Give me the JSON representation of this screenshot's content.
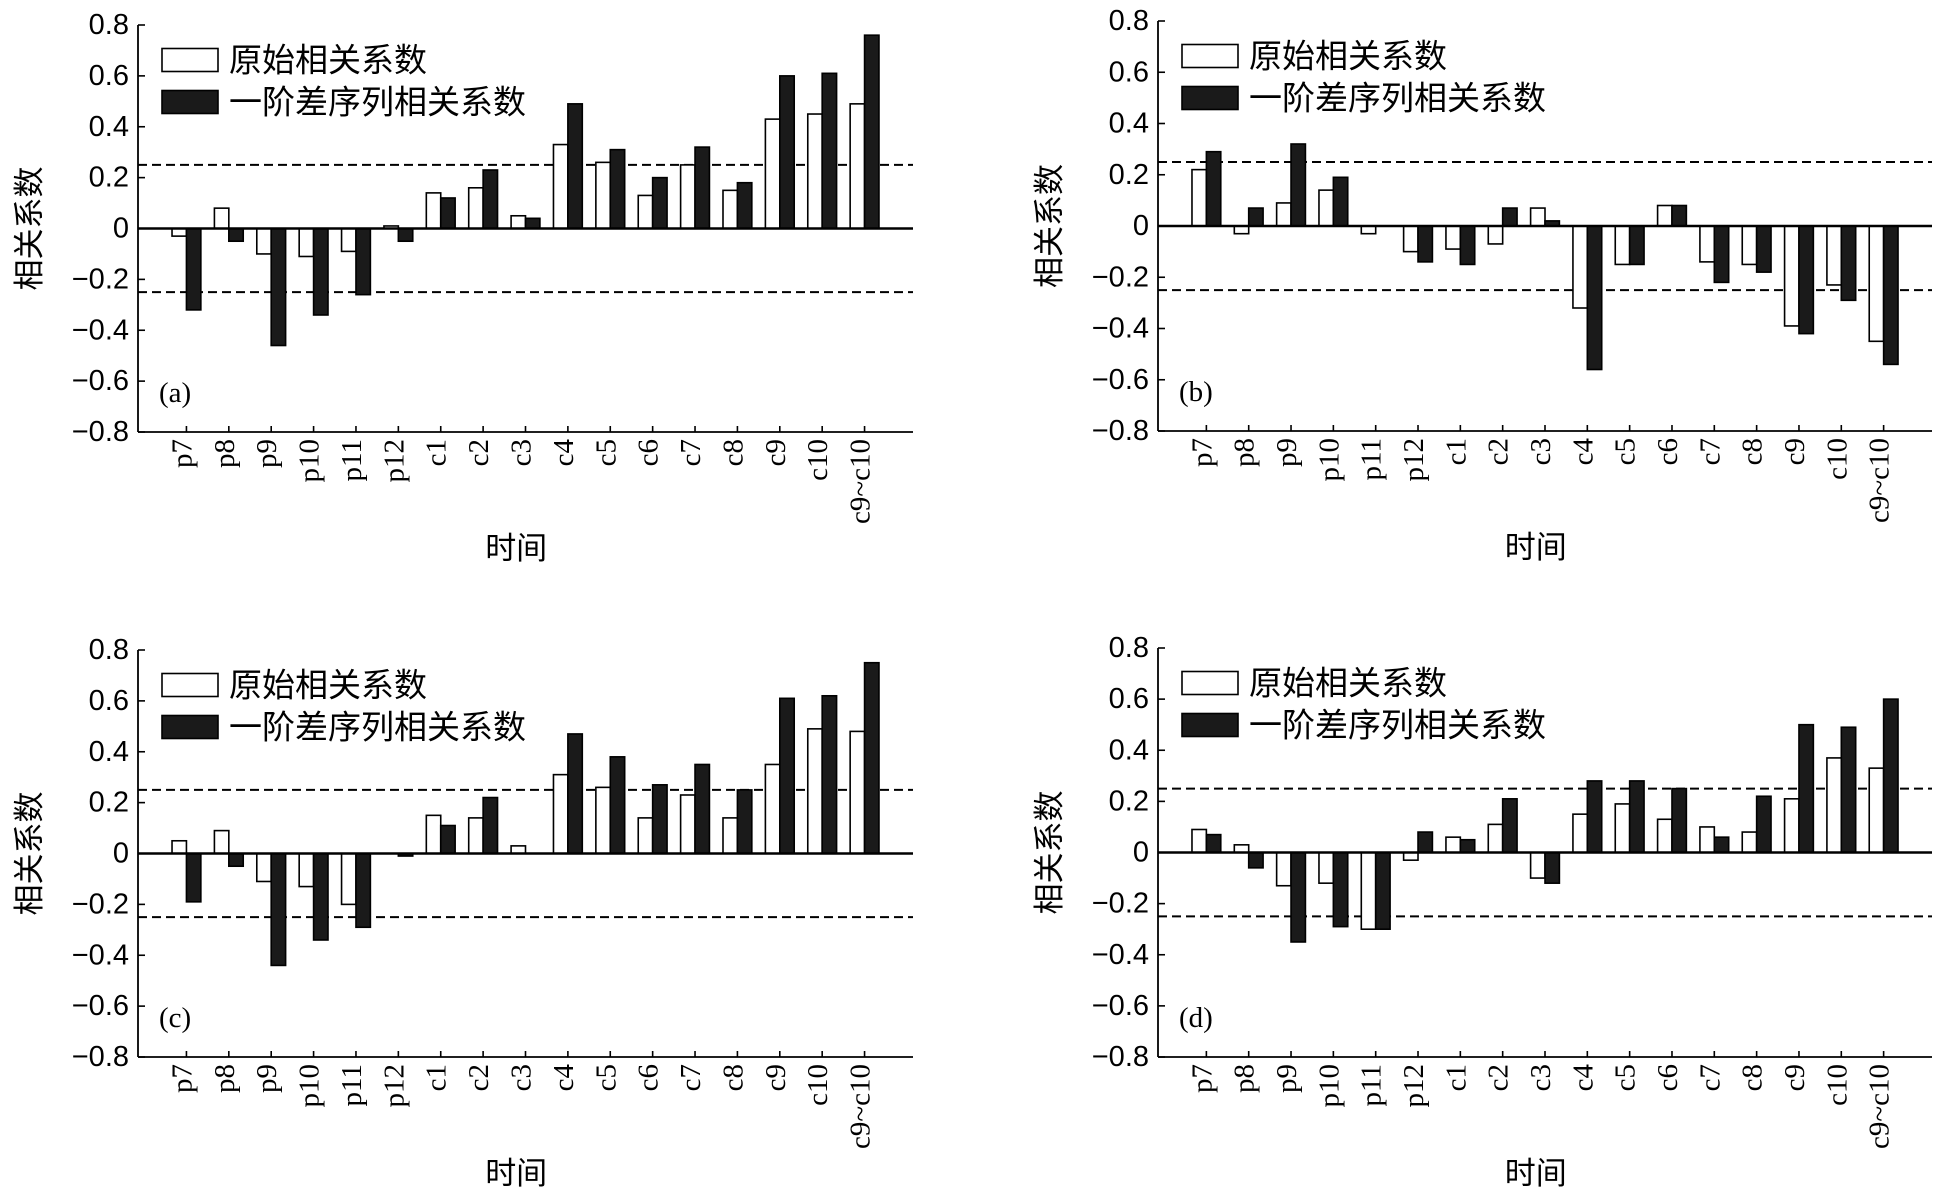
{
  "chart_data": [
    {
      "panel_label": "(a)",
      "type": "bar",
      "categories": [
        "p7",
        "p8",
        "p9",
        "p10",
        "p11",
        "p12",
        "c1",
        "c2",
        "c3",
        "c4",
        "c5",
        "c6",
        "c7",
        "c8",
        "c9",
        "c10",
        "c9~c10"
      ],
      "series": [
        {
          "name": "原始相关系数",
          "color": "#ffffff",
          "values": [
            -0.03,
            0.08,
            -0.1,
            -0.11,
            -0.09,
            0.01,
            0.14,
            0.16,
            0.05,
            0.33,
            0.26,
            0.13,
            0.25,
            0.15,
            0.43,
            0.45,
            0.49
          ]
        },
        {
          "name": "一阶差序列相关系数",
          "color": "#1a1a1a",
          "values": [
            -0.32,
            -0.05,
            -0.46,
            -0.34,
            -0.26,
            -0.05,
            0.12,
            0.23,
            0.04,
            0.49,
            0.31,
            0.2,
            0.32,
            0.18,
            0.6,
            0.61,
            0.76
          ]
        }
      ],
      "edge_color": "#000000",
      "xlabel": "时间",
      "ylabel": "相关系数",
      "ylim": [
        -0.8,
        0.8
      ],
      "yticks": [
        0.8,
        0.6,
        0.4,
        0.2,
        0,
        -0.2,
        -0.4,
        -0.6,
        -0.8
      ],
      "ytick_labels": [
        "0.8",
        "0.6",
        "0.4",
        "0.2",
        "0",
        "−0.2",
        "−0.4",
        "−0.6",
        "−0.8"
      ],
      "reference_lines": [
        0.25,
        -0.25
      ],
      "grid": false,
      "legend": "top-left"
    },
    {
      "panel_label": "(b)",
      "type": "bar",
      "categories": [
        "p7",
        "p8",
        "p9",
        "p10",
        "p11",
        "p12",
        "c1",
        "c2",
        "c3",
        "c4",
        "c5",
        "c6",
        "c7",
        "c8",
        "c9",
        "c10",
        "c9~c10"
      ],
      "series": [
        {
          "name": "原始相关系数",
          "color": "#ffffff",
          "values": [
            0.22,
            -0.03,
            0.09,
            0.14,
            -0.03,
            -0.1,
            -0.09,
            -0.07,
            0.07,
            -0.32,
            -0.15,
            0.08,
            -0.14,
            -0.15,
            -0.39,
            -0.23,
            -0.45
          ]
        },
        {
          "name": "一阶差序列相关系数",
          "color": "#1a1a1a",
          "values": [
            0.29,
            0.07,
            0.32,
            0.19,
            0,
            -0.14,
            -0.15,
            0.07,
            0.02,
            -0.56,
            -0.15,
            0.08,
            -0.22,
            -0.18,
            -0.42,
            -0.29,
            -0.54
          ]
        }
      ],
      "edge_color": "#000000",
      "xlabel": "时间",
      "ylabel": "相关系数",
      "ylim": [
        -0.8,
        0.8
      ],
      "yticks": [
        0.8,
        0.6,
        0.4,
        0.2,
        0,
        -0.2,
        -0.4,
        -0.6,
        -0.8
      ],
      "ytick_labels": [
        "0.8",
        "0.6",
        "0.4",
        "0.2",
        "0",
        "−0.2",
        "−0.4",
        "−0.6",
        "−0.8"
      ],
      "reference_lines": [
        0.25,
        -0.25
      ],
      "grid": false,
      "legend": "top-left"
    },
    {
      "panel_label": "(c)",
      "type": "bar",
      "categories": [
        "p7",
        "p8",
        "p9",
        "p10",
        "p11",
        "p12",
        "c1",
        "c2",
        "c3",
        "c4",
        "c5",
        "c6",
        "c7",
        "c8",
        "c9",
        "c10",
        "c9~c10"
      ],
      "series": [
        {
          "name": "原始相关系数",
          "color": "#ffffff",
          "values": [
            0.05,
            0.09,
            -0.11,
            -0.13,
            -0.2,
            0,
            0.15,
            0.14,
            0.03,
            0.31,
            0.26,
            0.14,
            0.23,
            0.14,
            0.35,
            0.49,
            0.48
          ]
        },
        {
          "name": "一阶差序列相关系数",
          "color": "#1a1a1a",
          "values": [
            -0.19,
            -0.05,
            -0.44,
            -0.34,
            -0.29,
            -0.01,
            0.11,
            0.22,
            0,
            0.47,
            0.38,
            0.27,
            0.35,
            0.25,
            0.61,
            0.62,
            0.75
          ]
        }
      ],
      "edge_color": "#000000",
      "xlabel": "时间",
      "ylabel": "相关系数",
      "ylim": [
        -0.8,
        0.8
      ],
      "yticks": [
        0.8,
        0.6,
        0.4,
        0.2,
        0,
        -0.2,
        -0.4,
        -0.6,
        -0.8
      ],
      "ytick_labels": [
        "0.8",
        "0.6",
        "0.4",
        "0.2",
        "0",
        "−0.2",
        "−0.4",
        "−0.6",
        "−0.8"
      ],
      "reference_lines": [
        0.25,
        -0.25
      ],
      "grid": false,
      "legend": "top-left"
    },
    {
      "panel_label": "(d)",
      "type": "bar",
      "categories": [
        "p7",
        "p8",
        "p9",
        "p10",
        "p11",
        "p12",
        "c1",
        "c2",
        "c3",
        "c4",
        "c5",
        "c6",
        "c7",
        "c8",
        "c9",
        "c10",
        "c9~c10"
      ],
      "series": [
        {
          "name": "原始相关系数",
          "color": "#ffffff",
          "values": [
            0.09,
            0.03,
            -0.13,
            -0.12,
            -0.3,
            -0.03,
            0.06,
            0.11,
            -0.1,
            0.15,
            0.19,
            0.13,
            0.1,
            0.08,
            0.21,
            0.37,
            0.33
          ]
        },
        {
          "name": "一阶差序列相关系数",
          "color": "#1a1a1a",
          "values": [
            0.07,
            -0.06,
            -0.35,
            -0.29,
            -0.3,
            0.08,
            0.05,
            0.21,
            -0.12,
            0.28,
            0.28,
            0.25,
            0.06,
            0.22,
            0.5,
            0.49,
            0.6
          ]
        }
      ],
      "edge_color": "#000000",
      "xlabel": "时间",
      "ylabel": "相关系数",
      "ylim": [
        -0.8,
        0.8
      ],
      "yticks": [
        0.8,
        0.6,
        0.4,
        0.2,
        0,
        -0.2,
        -0.4,
        -0.6,
        -0.8
      ],
      "ytick_labels": [
        "0.8",
        "0.6",
        "0.4",
        "0.2",
        "0",
        "−0.2",
        "−0.4",
        "−0.6",
        "−0.8"
      ],
      "reference_lines": [
        0.25,
        -0.25
      ],
      "grid": false,
      "legend": "top-left"
    }
  ]
}
